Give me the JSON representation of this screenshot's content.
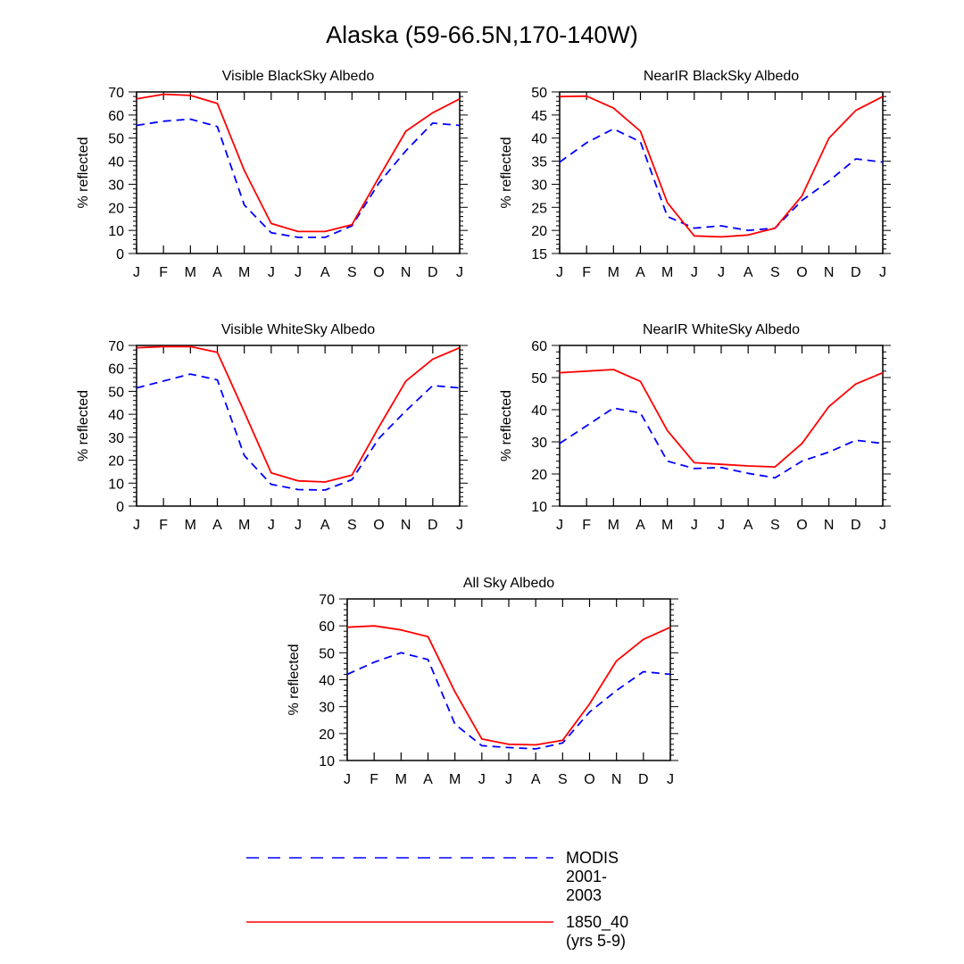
{
  "title": "Alaska (59-66.5N,170-140W)",
  "months": [
    "J",
    "F",
    "M",
    "A",
    "M",
    "J",
    "J",
    "A",
    "S",
    "O",
    "N",
    "D",
    "J"
  ],
  "colors": {
    "modis": "#0000ff",
    "model": "#ff0000",
    "axis": "#000000"
  },
  "legend": [
    {
      "key": "modis",
      "label": "MODIS 2001-2003",
      "style": "dashed"
    },
    {
      "key": "model",
      "label": "1850_40 (yrs 5-9)",
      "style": "solid"
    }
  ],
  "chart_data": [
    {
      "type": "line",
      "title": "Visible BlackSky Albedo",
      "xlabel": "",
      "ylabel": "% reflected",
      "ylim": [
        0,
        70
      ],
      "yticks": [
        0,
        10,
        20,
        30,
        40,
        50,
        60,
        70
      ],
      "categories": [
        "J",
        "F",
        "M",
        "A",
        "M",
        "J",
        "J",
        "A",
        "S",
        "O",
        "N",
        "D",
        "J"
      ],
      "series": [
        {
          "name": "MODIS 2001-2003",
          "values": [
            55.5,
            57.3,
            58.2,
            55.0,
            21.0,
            9.0,
            7.0,
            7.0,
            12.0,
            30.5,
            44.5,
            56.5,
            55.5
          ]
        },
        {
          "name": "1850_40 (yrs 5-9)",
          "values": [
            67.0,
            69.0,
            68.5,
            65.0,
            36.0,
            13.0,
            9.5,
            9.5,
            12.5,
            33.0,
            53.0,
            61.0,
            67.0
          ]
        }
      ]
    },
    {
      "type": "line",
      "title": "NearIR BlackSky Albedo",
      "xlabel": "",
      "ylabel": "% reflected",
      "ylim": [
        15,
        50
      ],
      "yticks": [
        15,
        20,
        25,
        30,
        35,
        40,
        45,
        50
      ],
      "categories": [
        "J",
        "F",
        "M",
        "A",
        "M",
        "J",
        "J",
        "A",
        "S",
        "O",
        "N",
        "D",
        "J"
      ],
      "series": [
        {
          "name": "MODIS 2001-2003",
          "values": [
            34.8,
            39.0,
            42.0,
            39.2,
            23.0,
            20.5,
            21.0,
            20.0,
            20.5,
            26.5,
            30.7,
            35.5,
            34.8
          ]
        },
        {
          "name": "1850_40 (yrs 5-9)",
          "values": [
            49.0,
            49.1,
            46.5,
            41.5,
            26.0,
            18.8,
            18.6,
            19.0,
            20.5,
            27.5,
            40.0,
            46.0,
            49.0
          ]
        }
      ]
    },
    {
      "type": "line",
      "title": "Visible WhiteSky Albedo",
      "xlabel": "",
      "ylabel": "% reflected",
      "ylim": [
        0,
        70
      ],
      "yticks": [
        0,
        10,
        20,
        30,
        40,
        50,
        60,
        70
      ],
      "categories": [
        "J",
        "F",
        "M",
        "A",
        "M",
        "J",
        "J",
        "A",
        "S",
        "O",
        "N",
        "D",
        "J"
      ],
      "series": [
        {
          "name": "MODIS 2001-2003",
          "values": [
            51.5,
            54.5,
            57.5,
            55.0,
            22.0,
            9.5,
            7.2,
            7.0,
            11.5,
            29.5,
            41.5,
            52.5,
            51.5
          ]
        },
        {
          "name": "1850_40 (yrs 5-9)",
          "values": [
            69.0,
            69.5,
            69.5,
            67.0,
            41.0,
            14.5,
            11.0,
            10.5,
            13.5,
            34.5,
            54.5,
            64.0,
            69.0
          ]
        }
      ]
    },
    {
      "type": "line",
      "title": "NearIR WhiteSky Albedo",
      "xlabel": "",
      "ylabel": "% reflected",
      "ylim": [
        10,
        60
      ],
      "yticks": [
        10,
        20,
        30,
        40,
        50,
        60
      ],
      "categories": [
        "J",
        "F",
        "M",
        "A",
        "M",
        "J",
        "J",
        "A",
        "S",
        "O",
        "N",
        "D",
        "J"
      ],
      "series": [
        {
          "name": "MODIS 2001-2003",
          "values": [
            29.5,
            35.0,
            40.5,
            39.0,
            24.0,
            21.7,
            22.0,
            20.2,
            18.8,
            24.0,
            26.8,
            30.5,
            29.5
          ]
        },
        {
          "name": "1850_40 (yrs 5-9)",
          "values": [
            51.5,
            52.0,
            52.5,
            48.8,
            33.5,
            23.5,
            23.0,
            22.5,
            22.2,
            29.5,
            41.0,
            48.0,
            51.5
          ]
        }
      ]
    },
    {
      "type": "line",
      "title": "All Sky Albedo",
      "xlabel": "",
      "ylabel": "% reflected",
      "ylim": [
        10,
        70
      ],
      "yticks": [
        10,
        20,
        30,
        40,
        50,
        60,
        70
      ],
      "categories": [
        "J",
        "F",
        "M",
        "A",
        "M",
        "J",
        "J",
        "A",
        "S",
        "O",
        "N",
        "D",
        "J"
      ],
      "series": [
        {
          "name": "MODIS 2001-2003",
          "values": [
            42.0,
            46.5,
            50.0,
            47.5,
            23.5,
            15.5,
            14.8,
            14.3,
            16.5,
            28.0,
            36.0,
            43.0,
            42.0
          ]
        },
        {
          "name": "1850_40 (yrs 5-9)",
          "values": [
            59.5,
            60.0,
            58.5,
            56.0,
            35.5,
            18.0,
            16.0,
            15.8,
            17.5,
            31.0,
            47.0,
            55.0,
            59.5
          ]
        }
      ]
    }
  ]
}
